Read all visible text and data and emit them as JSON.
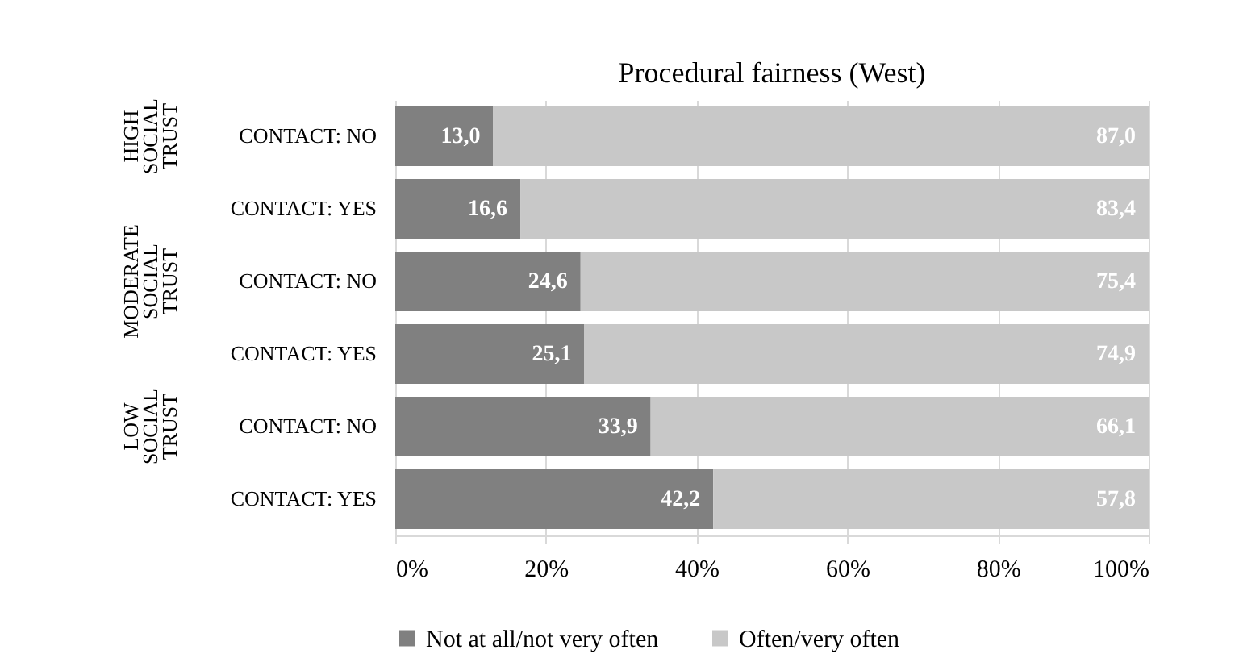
{
  "chart_data": {
    "type": "bar",
    "title": "Procedural fairness (West)",
    "orientation": "horizontal",
    "stacked": true,
    "categories": [
      "CONTACT: NO",
      "CONTACT: YES",
      "CONTACT: NO",
      "CONTACT: YES",
      "CONTACT: NO",
      "CONTACT: YES"
    ],
    "series": [
      {
        "name": "Not at all/not very often",
        "color": "#808080",
        "values": [
          13.0,
          16.6,
          24.6,
          25.1,
          33.9,
          42.2
        ],
        "value_labels": [
          "13,0",
          "16,6",
          "24,6",
          "25,1",
          "33,9",
          "42,2"
        ]
      },
      {
        "name": "Often/very often",
        "color": "#c8c8c8",
        "values": [
          87.0,
          83.4,
          75.4,
          74.9,
          66.1,
          57.8
        ],
        "value_labels": [
          "87,0",
          "83,4",
          "75,4",
          "74,9",
          "66,1",
          "57,8"
        ]
      }
    ],
    "xlim": [
      0,
      100
    ],
    "xticks": [
      {
        "value": 0,
        "label": "0%"
      },
      {
        "value": 20,
        "label": "20%"
      },
      {
        "value": 40,
        "label": "40%"
      },
      {
        "value": 60,
        "label": "60%"
      },
      {
        "value": 80,
        "label": "80%"
      },
      {
        "value": 100,
        "label": "100%"
      }
    ],
    "annotations": [
      "HIGH SOCIAL TRUST",
      "MODERATE SOCIAL TRUST",
      "LOW SOCIAL TRUST"
    ],
    "grid": "x",
    "legend": "bottom"
  }
}
